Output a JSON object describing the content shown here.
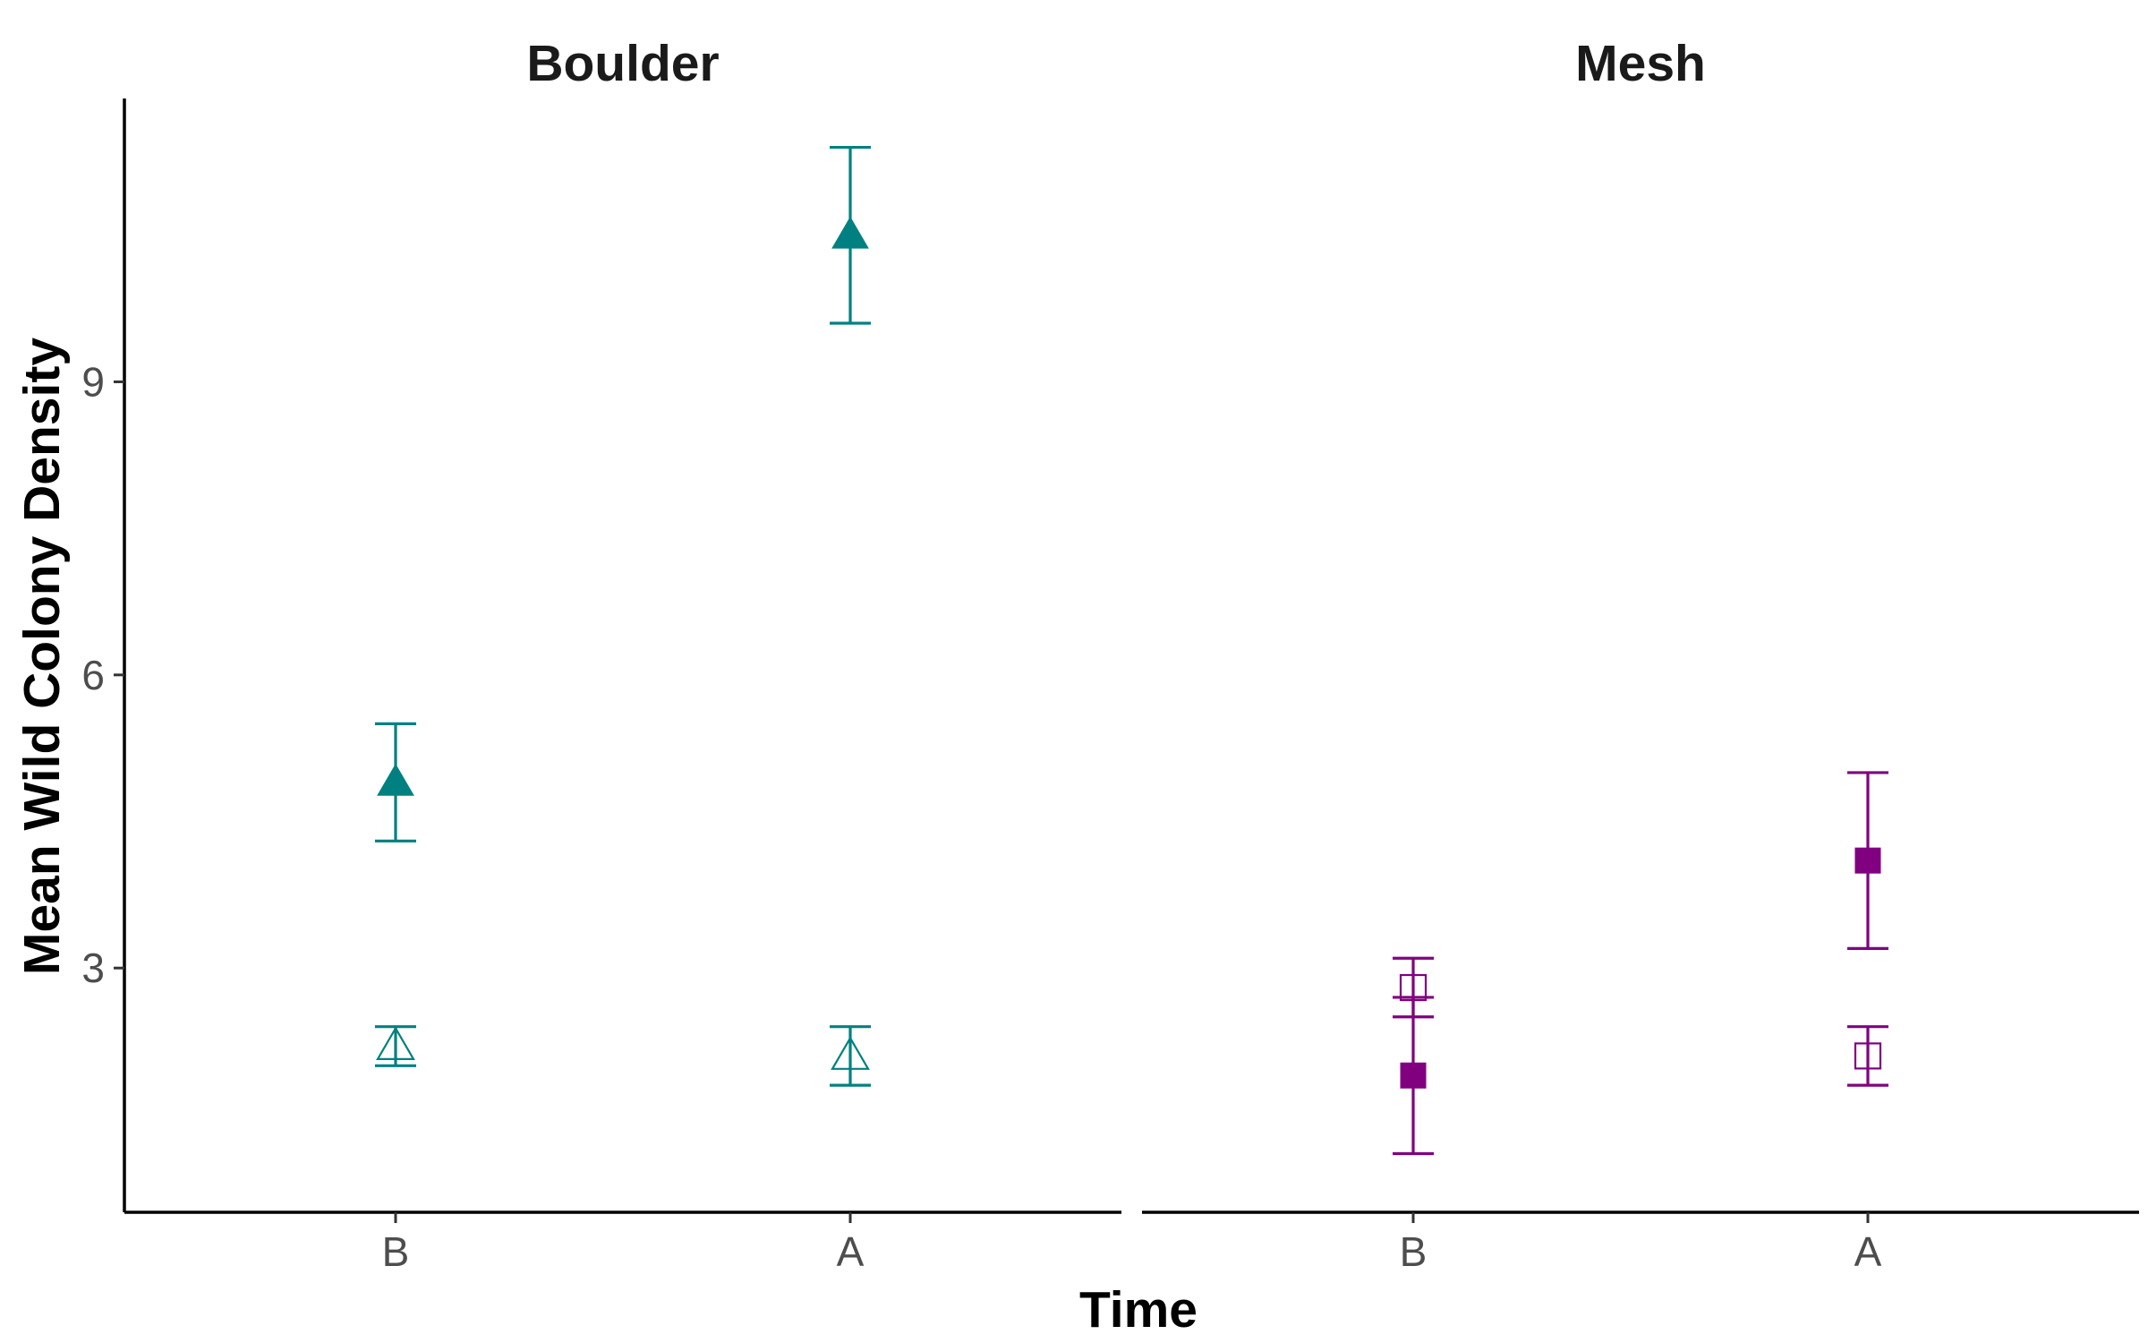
{
  "chart_data": {
    "type": "scatter",
    "subtype": "point-errorbar",
    "xlabel": "Time",
    "ylabel": "Mean Wild Colony Density",
    "categories": [
      "B",
      "A"
    ],
    "ylim": [
      0.5,
      11.9
    ],
    "yticks": [
      3,
      6,
      9
    ],
    "grid": false,
    "legend": "none",
    "panels": [
      {
        "title": "Boulder",
        "color": "#008080",
        "shape": "triangle",
        "series": [
          {
            "fill": "filled",
            "points": [
              {
                "x": "B",
                "y": 4.9,
                "ymin": 4.3,
                "ymax": 5.5
              },
              {
                "x": "A",
                "y": 10.5,
                "ymin": 9.6,
                "ymax": 11.4
              }
            ]
          },
          {
            "fill": "open",
            "points": [
              {
                "x": "B",
                "y": 2.2,
                "ymin": 2.0,
                "ymax": 2.4
              },
              {
                "x": "A",
                "y": 2.1,
                "ymin": 1.8,
                "ymax": 2.4
              }
            ]
          }
        ]
      },
      {
        "title": "Mesh",
        "color": "#800080",
        "shape": "square",
        "series": [
          {
            "fill": "filled",
            "points": [
              {
                "x": "B",
                "y": 1.9,
                "ymin": 1.1,
                "ymax": 2.7
              },
              {
                "x": "A",
                "y": 4.1,
                "ymin": 3.2,
                "ymax": 5.0
              }
            ]
          },
          {
            "fill": "open",
            "points": [
              {
                "x": "B",
                "y": 2.8,
                "ymin": 2.5,
                "ymax": 3.1
              },
              {
                "x": "A",
                "y": 2.1,
                "ymin": 1.8,
                "ymax": 2.4
              }
            ]
          }
        ]
      }
    ]
  }
}
